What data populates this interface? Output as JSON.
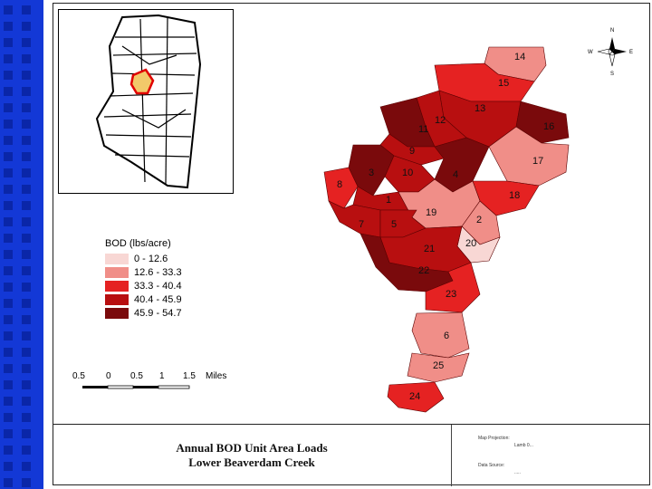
{
  "legend": {
    "title": "BOD (lbs/acre)",
    "classes": [
      {
        "label": "0 - 12.6",
        "color": "#f8d7d4"
      },
      {
        "label": "12.6 - 33.3",
        "color": "#f08e88"
      },
      {
        "label": "33.3 - 40.4",
        "color": "#e52222"
      },
      {
        "label": "40.4 - 45.9",
        "color": "#b80f10"
      },
      {
        "label": "45.9 - 54.7",
        "color": "#7a0a0c"
      }
    ]
  },
  "subbasins": [
    {
      "id": "14",
      "class": 1
    },
    {
      "id": "15",
      "class": 2
    },
    {
      "id": "13",
      "class": 3
    },
    {
      "id": "12",
      "class": 3
    },
    {
      "id": "11",
      "class": 4
    },
    {
      "id": "16",
      "class": 4
    },
    {
      "id": "9",
      "class": 3
    },
    {
      "id": "17",
      "class": 1
    },
    {
      "id": "3",
      "class": 4
    },
    {
      "id": "10",
      "class": 3
    },
    {
      "id": "4",
      "class": 4
    },
    {
      "id": "8",
      "class": 2
    },
    {
      "id": "18",
      "class": 2
    },
    {
      "id": "1",
      "class": 3
    },
    {
      "id": "19",
      "class": 1
    },
    {
      "id": "2",
      "class": 1
    },
    {
      "id": "7",
      "class": 3
    },
    {
      "id": "5",
      "class": 3
    },
    {
      "id": "20",
      "class": 0
    },
    {
      "id": "21",
      "class": 3
    },
    {
      "id": "22",
      "class": 4
    },
    {
      "id": "23",
      "class": 2
    },
    {
      "id": "6",
      "class": 1
    },
    {
      "id": "25",
      "class": 1
    },
    {
      "id": "24",
      "class": 2
    }
  ],
  "scale": {
    "labels": [
      "0.5",
      "0",
      "0.5",
      "1",
      "1.5",
      "Miles"
    ]
  },
  "north_arrow": {
    "n": "N",
    "e": "E",
    "s": "S",
    "w": "W"
  },
  "title": {
    "line1": "Annual BOD Unit Area Loads",
    "line2": "Lower Beaverdam Creek"
  },
  "info": {
    "projection_label": "Map Projection:",
    "projection_value": "Lamb 0...",
    "source_label": "Data Source:",
    "source_value": "....."
  }
}
